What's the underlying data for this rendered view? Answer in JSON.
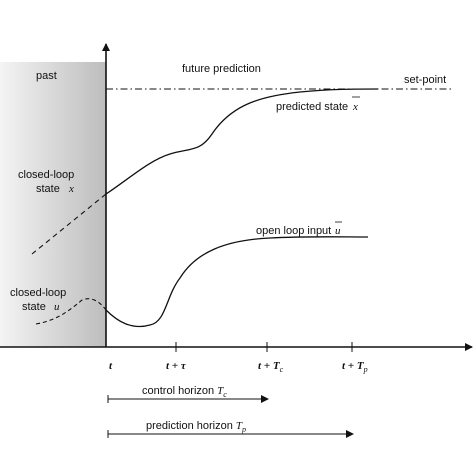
{
  "labels": {
    "past": "past",
    "future_prediction": "future prediction",
    "set_point": "set-point",
    "predicted_state": "predicted state",
    "predicted_state_symbol": "x",
    "closed_loop_state_x_line1": "closed-loop",
    "closed_loop_state_x_line2": "state",
    "closed_loop_state_x_symbol": "x",
    "open_loop_input": "open loop input",
    "open_loop_input_symbol": "u",
    "closed_loop_state_u_line1": "closed-loop",
    "closed_loop_state_u_line2": "state",
    "closed_loop_state_u_symbol": "u"
  },
  "ticks": {
    "t": "t",
    "t_tau_base": "t",
    "t_tau_op": " + ",
    "t_tau_sym": "τ",
    "t_tc_base": "t",
    "t_tc_op": " + ",
    "t_tc_sym": "T",
    "t_tc_sub": "c",
    "t_tp_base": "t",
    "t_tp_op": " + ",
    "t_tp_sym": "T",
    "t_tp_sub": "p"
  },
  "horizons": {
    "control_label": "control horizon",
    "control_sym": "T",
    "control_sub": "c",
    "prediction_label": "prediction horizon",
    "prediction_sym": "T",
    "prediction_sub": "p"
  },
  "colors": {
    "past_shade_dark": "#bdbdbd",
    "past_shade_light": "#f4f4f4",
    "line": "#111111"
  }
}
